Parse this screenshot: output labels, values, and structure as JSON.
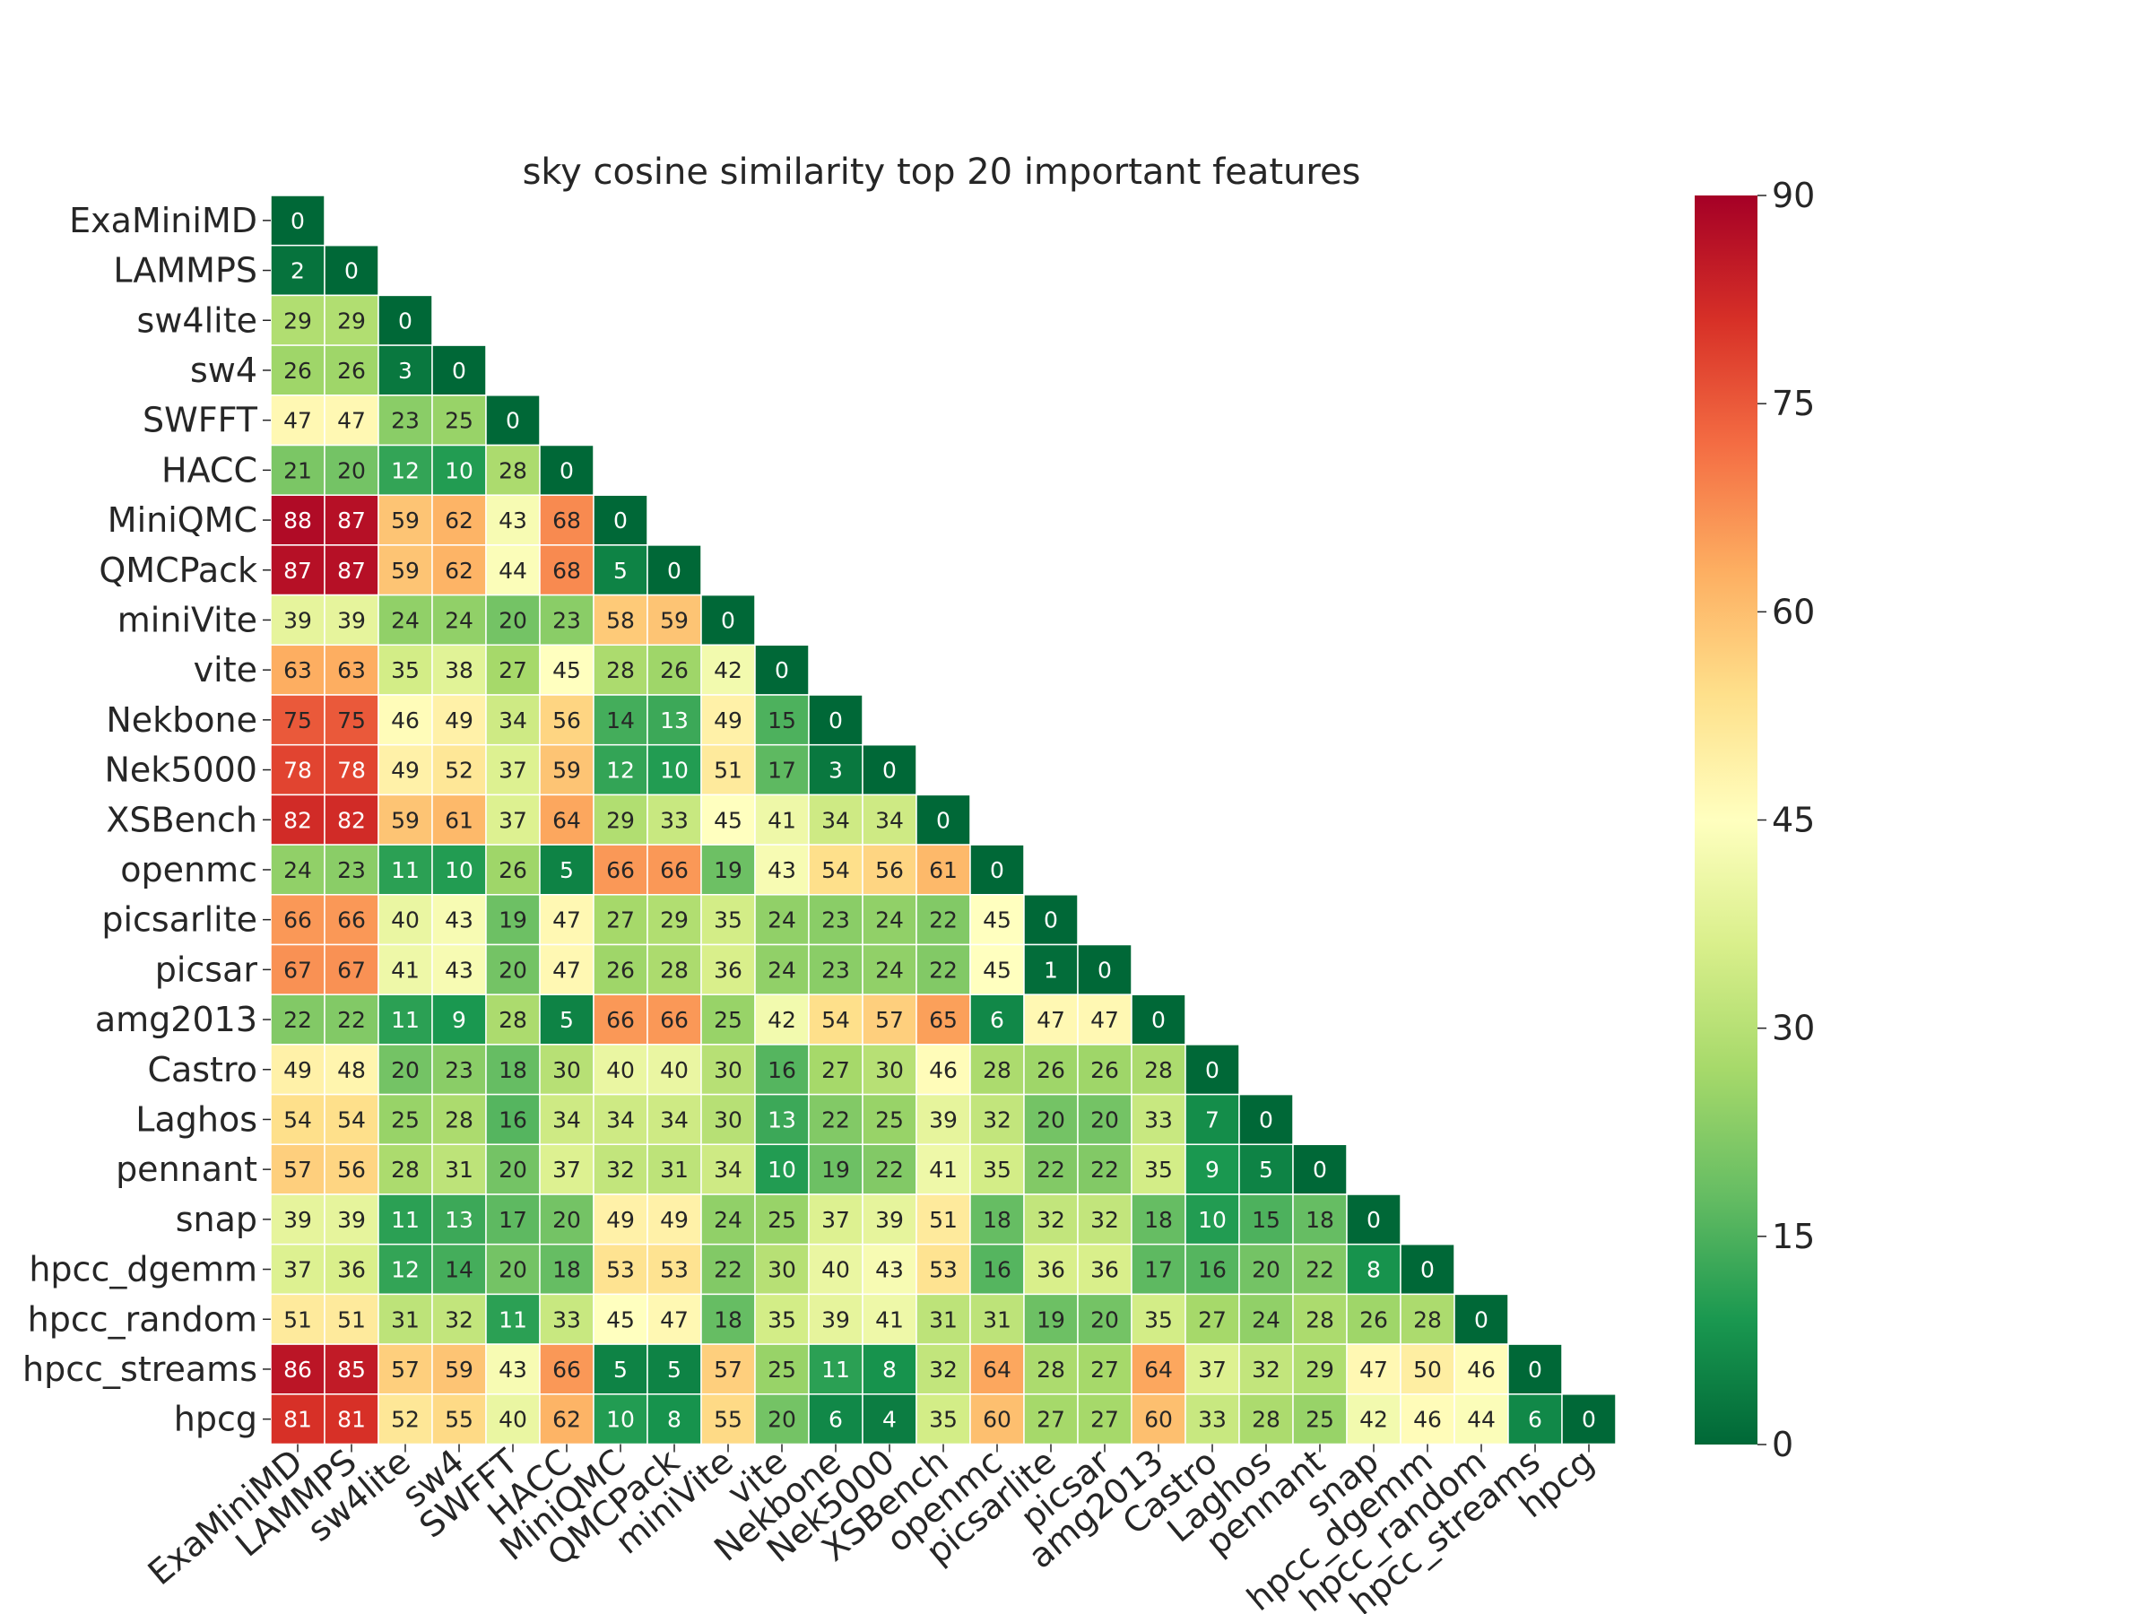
{
  "chart_data": {
    "type": "heatmap",
    "title": "sky cosine similarity top 20 important features",
    "labels": [
      "ExaMiniMD",
      "LAMMPS",
      "sw4lite",
      "sw4",
      "SWFFT",
      "HACC",
      "MiniQMC",
      "QMCPack",
      "miniVite",
      "vite",
      "Nekbone",
      "Nek5000",
      "XSBench",
      "openmc",
      "picsarlite",
      "picsar",
      "amg2013",
      "Castro",
      "Laghos",
      "pennant",
      "snap",
      "hpcc_dgemm",
      "hpcc_random",
      "hpcc_streams",
      "hpcg"
    ],
    "matrix_shape": "lower-triangular",
    "rows": [
      [
        0
      ],
      [
        2,
        0
      ],
      [
        29,
        29,
        0
      ],
      [
        26,
        26,
        3,
        0
      ],
      [
        47,
        47,
        23,
        25,
        0
      ],
      [
        21,
        20,
        12,
        10,
        28,
        0
      ],
      [
        88,
        87,
        59,
        62,
        43,
        68,
        0
      ],
      [
        87,
        87,
        59,
        62,
        44,
        68,
        5,
        0
      ],
      [
        39,
        39,
        24,
        24,
        20,
        23,
        58,
        59,
        0
      ],
      [
        63,
        63,
        35,
        38,
        27,
        45,
        28,
        26,
        42,
        0
      ],
      [
        75,
        75,
        46,
        49,
        34,
        56,
        14,
        13,
        49,
        15,
        0
      ],
      [
        78,
        78,
        49,
        52,
        37,
        59,
        12,
        10,
        51,
        17,
        3,
        0
      ],
      [
        82,
        82,
        59,
        61,
        37,
        64,
        29,
        33,
        45,
        41,
        34,
        34,
        0
      ],
      [
        24,
        23,
        11,
        10,
        26,
        5,
        66,
        66,
        19,
        43,
        54,
        56,
        61,
        0
      ],
      [
        66,
        66,
        40,
        43,
        19,
        47,
        27,
        29,
        35,
        24,
        23,
        24,
        22,
        45,
        0
      ],
      [
        67,
        67,
        41,
        43,
        20,
        47,
        26,
        28,
        36,
        24,
        23,
        24,
        22,
        45,
        1,
        0
      ],
      [
        22,
        22,
        11,
        9,
        28,
        5,
        66,
        66,
        25,
        42,
        54,
        57,
        65,
        6,
        47,
        47,
        0
      ],
      [
        49,
        48,
        20,
        23,
        18,
        30,
        40,
        40,
        30,
        16,
        27,
        30,
        46,
        28,
        26,
        26,
        28,
        0
      ],
      [
        54,
        54,
        25,
        28,
        16,
        34,
        34,
        34,
        30,
        13,
        22,
        25,
        39,
        32,
        20,
        20,
        33,
        7,
        0
      ],
      [
        57,
        56,
        28,
        31,
        20,
        37,
        32,
        31,
        34,
        10,
        19,
        22,
        41,
        35,
        22,
        22,
        35,
        9,
        5,
        0
      ],
      [
        39,
        39,
        11,
        13,
        17,
        20,
        49,
        49,
        24,
        25,
        37,
        39,
        51,
        18,
        32,
        32,
        18,
        10,
        15,
        18,
        0
      ],
      [
        37,
        36,
        12,
        14,
        20,
        18,
        53,
        53,
        22,
        30,
        40,
        43,
        53,
        16,
        36,
        36,
        17,
        16,
        20,
        22,
        8,
        0
      ],
      [
        51,
        51,
        31,
        32,
        11,
        33,
        45,
        47,
        18,
        35,
        39,
        41,
        31,
        31,
        19,
        20,
        35,
        27,
        24,
        28,
        26,
        28,
        0
      ],
      [
        86,
        85,
        57,
        59,
        43,
        66,
        5,
        5,
        57,
        25,
        11,
        8,
        32,
        64,
        28,
        27,
        64,
        37,
        32,
        29,
        47,
        50,
        46,
        0
      ],
      [
        81,
        81,
        52,
        55,
        40,
        62,
        10,
        8,
        55,
        20,
        6,
        4,
        35,
        60,
        27,
        27,
        60,
        33,
        28,
        25,
        42,
        46,
        44,
        6,
        0
      ]
    ],
    "colorbar": {
      "colormap": "RdYlGn_r",
      "vmin": 0,
      "vmax": 90,
      "ticks": [
        0,
        15,
        30,
        45,
        60,
        75,
        90
      ]
    }
  }
}
